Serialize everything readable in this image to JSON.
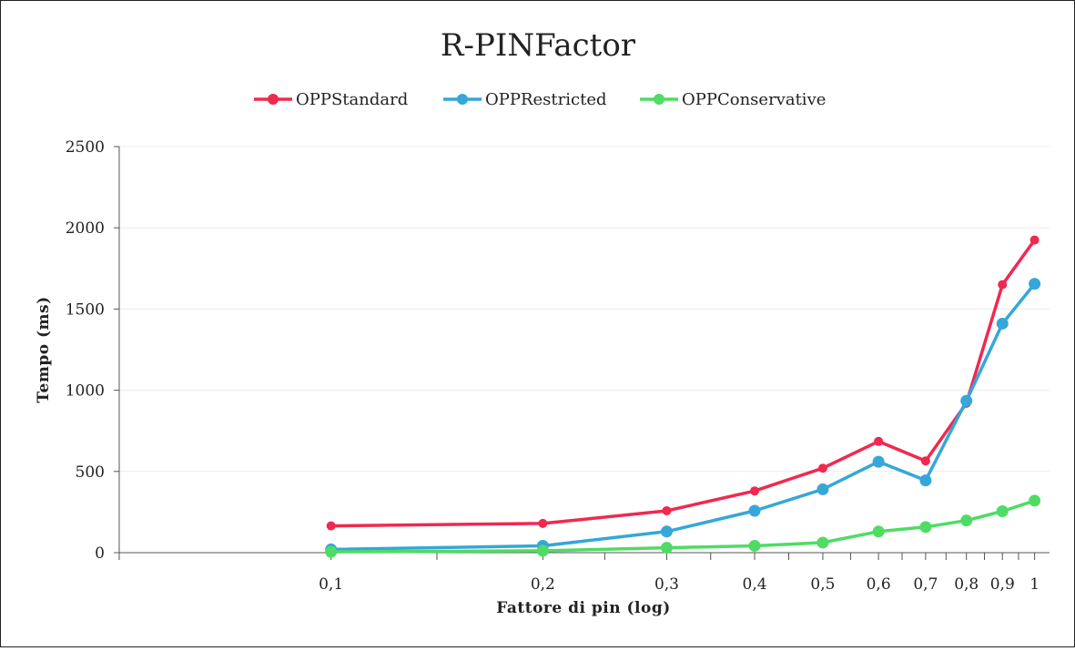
{
  "chart_data": {
    "type": "line",
    "title": "R-PINFactor",
    "xlabel": "Fattore di pin (log)",
    "ylabel": "Tempo (ms)",
    "x": [
      0.1,
      0.2,
      0.3,
      0.4,
      0.5,
      0.6,
      0.7,
      0.8,
      0.9,
      1
    ],
    "x_tick_labels": [
      "0,1",
      "0,2",
      "0,3",
      "0,4",
      "0,5",
      "0,6",
      "0,7",
      "0,8",
      "0,9",
      "1"
    ],
    "x_scale": "log",
    "xlim": [
      0.05,
      1.05
    ],
    "ylim": [
      0,
      2500
    ],
    "y_ticks": [
      0,
      500,
      1000,
      1500,
      2000,
      2500
    ],
    "y_tick_labels": [
      "0",
      "500",
      "1000",
      "1500",
      "2000",
      "2500"
    ],
    "grid": true,
    "legend_position": "top-center",
    "series": [
      {
        "name": "OPPStandard",
        "color": "#f0294f",
        "values": [
          165,
          180,
          258,
          380,
          520,
          685,
          565,
          920,
          1650,
          1925
        ]
      },
      {
        "name": "OPPRestricted",
        "color": "#35a7d8",
        "values": [
          20,
          42,
          130,
          258,
          390,
          560,
          445,
          935,
          1410,
          1655
        ]
      },
      {
        "name": "OPPConservative",
        "color": "#4fdc64",
        "values": [
          5,
          12,
          30,
          42,
          62,
          130,
          158,
          198,
          255,
          320
        ]
      }
    ]
  }
}
